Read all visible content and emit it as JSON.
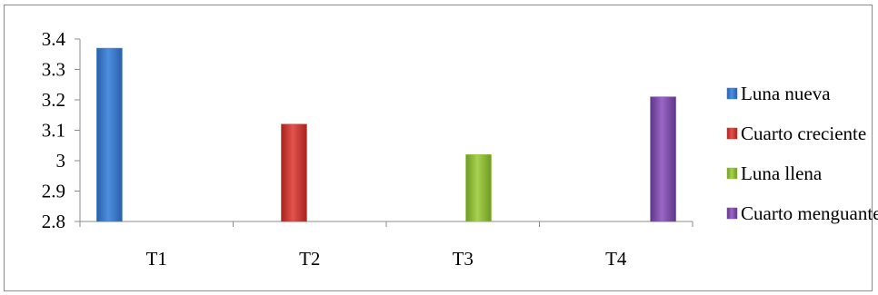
{
  "chart_data": {
    "type": "bar",
    "categories": [
      "T1",
      "T2",
      "T3",
      "T4"
    ],
    "ylim": [
      2.8,
      3.4
    ],
    "yticks": [
      "2.8",
      "2.9",
      "3",
      "3.1",
      "3.2",
      "3.3",
      "3.4"
    ],
    "series": [
      {
        "name": "Luna nueva",
        "color": "#3f7fd4",
        "values": [
          3.37,
          null,
          null,
          null
        ]
      },
      {
        "name": "Cuarto creciente",
        "color": "#d23a35",
        "values": [
          null,
          3.12,
          null,
          null
        ]
      },
      {
        "name": "Luna llena",
        "color": "#92c43c",
        "values": [
          null,
          null,
          3.02,
          null
        ]
      },
      {
        "name": "Cuarto menguante",
        "color": "#8453b0",
        "values": [
          null,
          null,
          null,
          3.21
        ]
      }
    ],
    "legend_position": "right",
    "grid": false,
    "title": "",
    "xlabel": "",
    "ylabel": ""
  }
}
